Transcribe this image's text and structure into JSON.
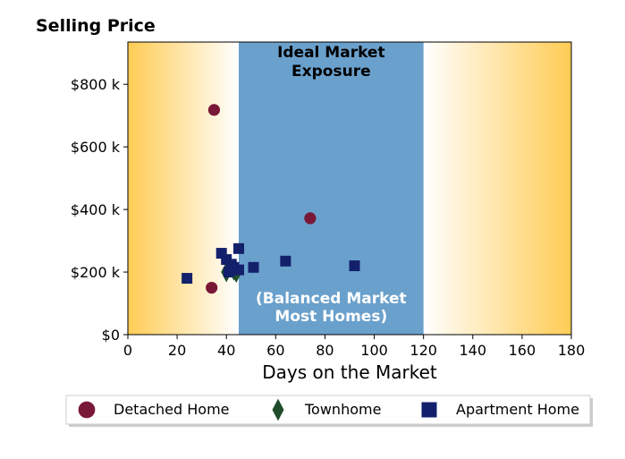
{
  "chart_data": {
    "type": "scatter",
    "title": "Selling Price",
    "xlabel": "Days on the Market",
    "ylabel": "",
    "xlim": [
      0,
      180
    ],
    "ylim": [
      0,
      935
    ],
    "xticks": [
      0,
      20,
      40,
      60,
      80,
      100,
      120,
      140,
      160,
      180
    ],
    "yticks": [
      0,
      200,
      400,
      600,
      800
    ],
    "ytick_labels": [
      "$0",
      "$200 k",
      "$400 k",
      "$600 k",
      "$800 k"
    ],
    "grid": false,
    "legend_position": "bottom",
    "background_zones": {
      "gradient_color": "#ffcc55",
      "ideal_range": [
        45,
        120
      ],
      "ideal_color": "#6aa0cc",
      "ideal_label": "Ideal Market Exposure",
      "ideal_label_lines": [
        "Ideal Market",
        "Exposure"
      ],
      "balanced_label_lines": [
        "(Balanced Market",
        "Most Homes)"
      ]
    },
    "series": [
      {
        "name": "Detached Home",
        "marker": "circle",
        "color": "#7a1838",
        "points": [
          [
            35,
            718
          ],
          [
            74,
            372
          ],
          [
            34,
            150
          ]
        ]
      },
      {
        "name": "Townhome",
        "marker": "diamond",
        "color": "#1e4d2b",
        "points": [
          [
            40,
            200
          ],
          [
            43,
            205
          ],
          [
            44,
            198
          ]
        ]
      },
      {
        "name": "Apartment Home",
        "marker": "square",
        "color": "#13206b",
        "points": [
          [
            24,
            180
          ],
          [
            38,
            260
          ],
          [
            40,
            240
          ],
          [
            42,
            225
          ],
          [
            41,
            200
          ],
          [
            43,
            215
          ],
          [
            45,
            275
          ],
          [
            45,
            207
          ],
          [
            51,
            215
          ],
          [
            64,
            235
          ],
          [
            92,
            220
          ]
        ]
      }
    ]
  }
}
